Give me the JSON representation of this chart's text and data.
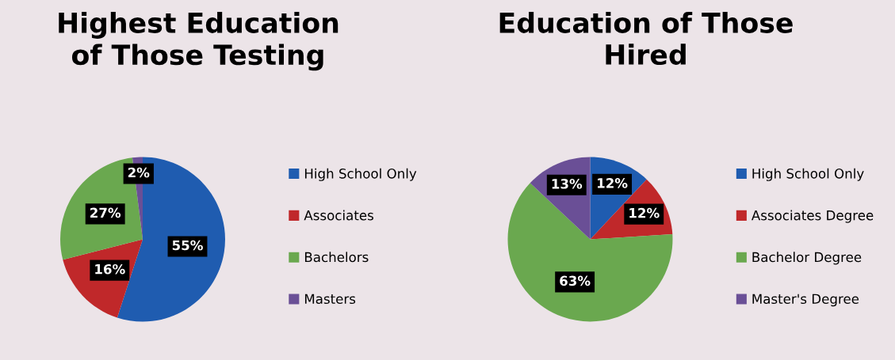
{
  "chart_data": [
    {
      "type": "pie",
      "title": "Highest Education of Those Testing",
      "categories": [
        "High School Only",
        "Associates",
        "Bachelors",
        "Masters"
      ],
      "values": [
        55,
        16,
        27,
        2
      ],
      "value_labels": [
        "55%",
        "16%",
        "27%",
        "2%"
      ],
      "colors": [
        "#1f5cb0",
        "#c0282a",
        "#6aa84f",
        "#6a4f96"
      ],
      "legend": "right"
    },
    {
      "type": "pie",
      "title": "Education of Those Hired",
      "categories": [
        "High School Only",
        "Associates Degree",
        "Bachelor Degree",
        "Master's Degree"
      ],
      "values": [
        12,
        12,
        63,
        13
      ],
      "value_labels": [
        "12%",
        "12%",
        "63%",
        "13%"
      ],
      "colors": [
        "#1f5cb0",
        "#c0282a",
        "#6aa84f",
        "#6a4f96"
      ],
      "legend": "right"
    }
  ]
}
